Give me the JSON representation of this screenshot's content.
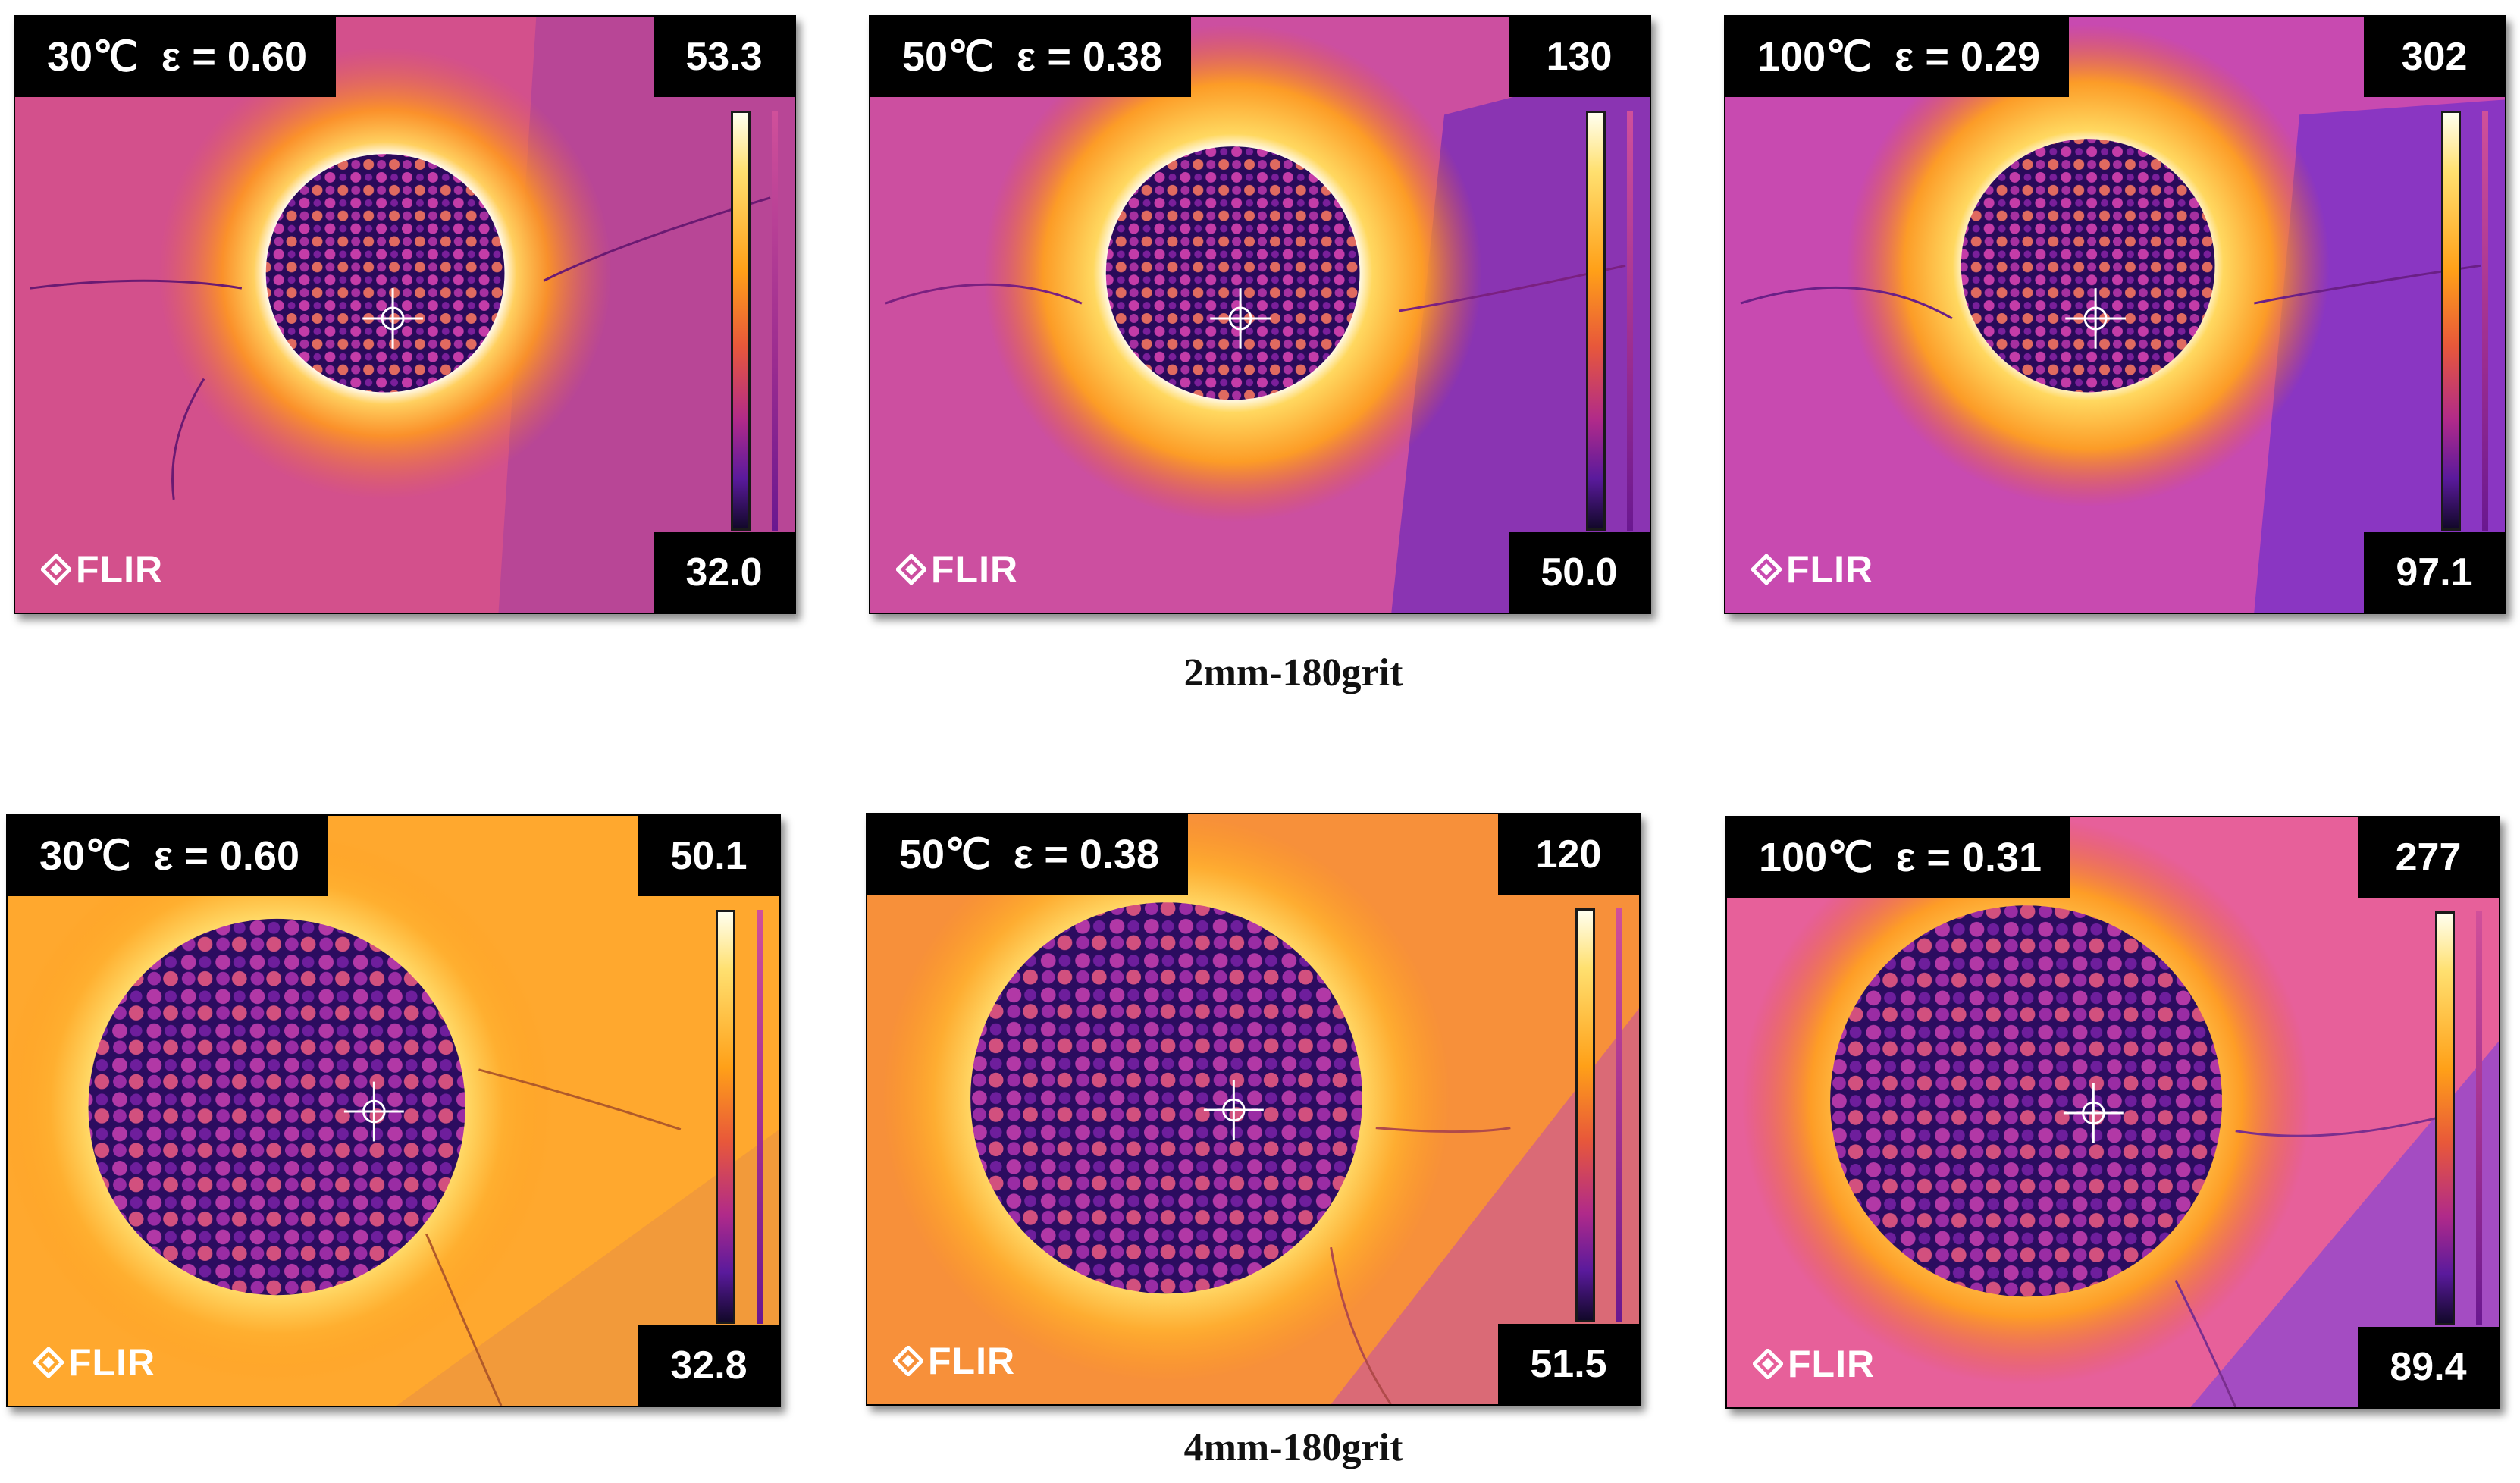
{
  "rows": [
    {
      "caption": "2mm-180grit",
      "panels": [
        {
          "label": "30℃  ε = 0.60",
          "max": "53.3",
          "min": "32.0",
          "logo": "FLIR"
        },
        {
          "label": "50℃  ε = 0.38",
          "max": "130",
          "min": "50.0",
          "logo": "FLIR"
        },
        {
          "label": "100℃  ε = 0.29",
          "max": "302",
          "min": "97.1",
          "logo": "FLIR"
        }
      ]
    },
    {
      "caption": "4mm-180grit",
      "panels": [
        {
          "label": "30℃  ε = 0.60",
          "max": "50.1",
          "min": "32.8",
          "logo": "FLIR"
        },
        {
          "label": "50℃  ε = 0.38",
          "max": "120",
          "min": "51.5",
          "logo": "FLIR"
        },
        {
          "label": "100℃  ε = 0.31",
          "max": "277",
          "min": "89.4",
          "logo": "FLIR"
        }
      ]
    }
  ],
  "icons": {
    "crosshair": "crosshair-icon",
    "logo": "flir-logo-icon"
  },
  "colors": {
    "palette_hot": "#fffff0",
    "palette_cold": "#12082a",
    "background_row1": "#c8488c",
    "background_row2": "#ffa020"
  }
}
